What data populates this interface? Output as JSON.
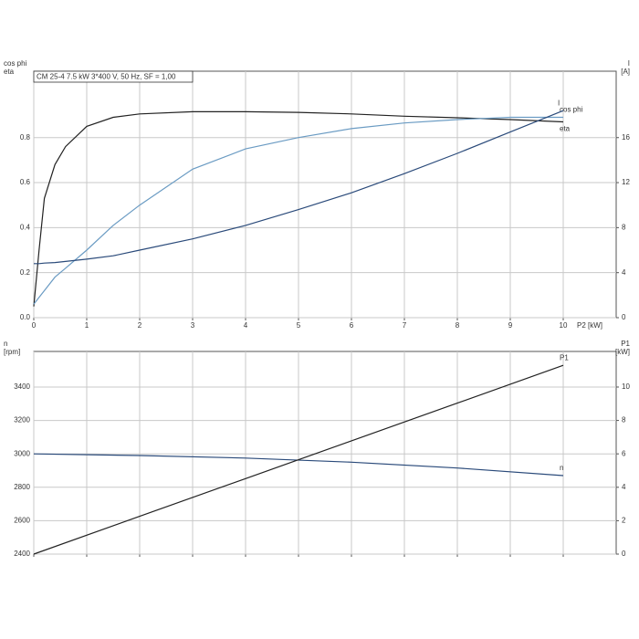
{
  "chart_data": [
    {
      "type": "line",
      "title": "CM 25-4   7.5 kW   3*400 V, 50 Hz, SF = 1,00",
      "ylabel": [
        "cos phi",
        "eta"
      ],
      "y2label": [
        "I",
        "[A]"
      ],
      "xlabel": "P2 [kW]",
      "x": [
        0,
        0.1,
        0.2,
        0.4,
        0.6,
        1,
        1.5,
        2,
        3,
        4,
        5,
        6,
        7,
        8,
        9,
        10
      ],
      "xlim": [
        0,
        11
      ],
      "xticks": [
        0,
        1,
        2,
        3,
        4,
        5,
        6,
        7,
        8,
        9,
        10
      ],
      "ylim": [
        0,
        1.095
      ],
      "yticks": [
        {
          "value": 0,
          "label": "0.0"
        },
        0.2,
        0.4,
        0.6,
        0.8
      ],
      "y2lim": [
        0,
        21.9
      ],
      "y2ticks": [
        0,
        4,
        8,
        12,
        16
      ],
      "grid": true,
      "series": [
        {
          "name": "eta",
          "color": "#222222",
          "values": [
            0.05,
            0.3,
            0.53,
            0.68,
            0.76,
            0.85,
            0.89,
            0.905,
            0.915,
            0.915,
            0.912,
            0.905,
            0.895,
            0.888,
            0.88,
            0.87
          ]
        },
        {
          "name": "cos phi",
          "color": "#6a9bc3",
          "values": [
            0.06,
            0.09,
            0.12,
            0.18,
            0.22,
            0.3,
            0.41,
            0.5,
            0.66,
            0.75,
            0.8,
            0.84,
            0.865,
            0.88,
            0.89,
            0.89
          ]
        },
        {
          "name": "I",
          "color": "#2a4a7a",
          "axis": "y2",
          "values": [
            4.8,
            4.8,
            4.85,
            4.9,
            5.0,
            5.2,
            5.5,
            6.0,
            7.0,
            8.2,
            9.6,
            11.1,
            12.8,
            14.6,
            16.5,
            18.4
          ]
        }
      ]
    },
    {
      "type": "line",
      "ylabel": [
        "n",
        "[rpm]"
      ],
      "y2label": [
        "P1",
        "[kW]"
      ],
      "x": [
        0,
        2,
        4,
        6,
        8,
        10
      ],
      "xlim": [
        0,
        11
      ],
      "xticks": [
        0,
        1,
        2,
        3,
        4,
        5,
        6,
        7,
        8,
        9,
        10
      ],
      "xtick_labels": false,
      "ylim": [
        2400,
        3613
      ],
      "yticks": [
        2400,
        2600,
        2800,
        3000,
        3200,
        3400
      ],
      "y2lim": [
        0,
        12.13
      ],
      "y2ticks": [
        0,
        2,
        4,
        6,
        8,
        10
      ],
      "grid": true,
      "series": [
        {
          "name": "n",
          "color": "#2a4a7a",
          "values": [
            3000,
            2990,
            2975,
            2950,
            2915,
            2870
          ]
        },
        {
          "name": "P1",
          "color": "#222222",
          "axis": "y2",
          "values": [
            0,
            2.26,
            4.52,
            6.78,
            9.04,
            11.3
          ]
        }
      ]
    }
  ]
}
